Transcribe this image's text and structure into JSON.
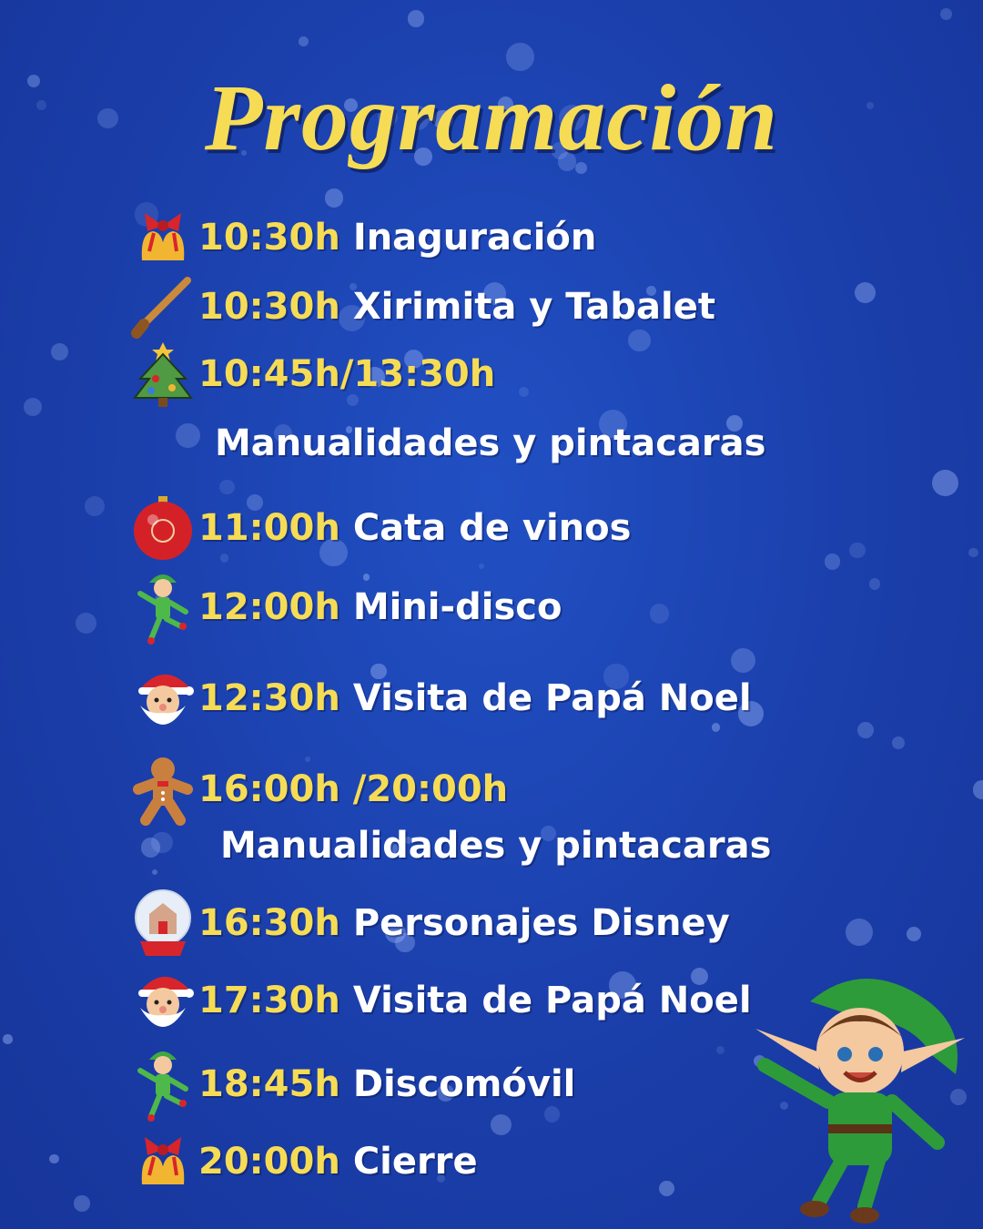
{
  "title": "Programación",
  "colors": {
    "background": "#1b3fae",
    "accent": "#f6dc55",
    "text": "#ffffff"
  },
  "items": [
    {
      "icon": "bells-icon",
      "time": "10:30h",
      "label": "Inaguración"
    },
    {
      "icon": "flute-icon",
      "time": "10:30h",
      "label": "Xirimita y Tabalet"
    },
    {
      "icon": "christmas-tree-icon",
      "time": "10:45h/13:30h",
      "label": "Manualidades y pintacaras"
    },
    {
      "icon": "ornament-ball-icon",
      "time": "11:00h",
      "label": "Cata de vinos"
    },
    {
      "icon": "dancing-elf-icon",
      "time": "12:00h",
      "label": "Mini-disco"
    },
    {
      "icon": "santa-icon",
      "time": "12:30h",
      "label": "Visita de Papá Noel"
    },
    {
      "icon": "gingerbread-icon",
      "time": "16:00h /20:00h",
      "label": "Manualidades y pintacaras"
    },
    {
      "icon": "snow-globe-icon",
      "time": "16:30h",
      "label": "Personajes Disney"
    },
    {
      "icon": "santa-icon",
      "time": "17:30h",
      "label": "Visita de Papá Noel"
    },
    {
      "icon": "dancing-elf-icon",
      "time": "18:45h",
      "label": "Discomóvil"
    },
    {
      "icon": "bells-icon",
      "time": "20:00h",
      "label": "Cierre"
    }
  ]
}
